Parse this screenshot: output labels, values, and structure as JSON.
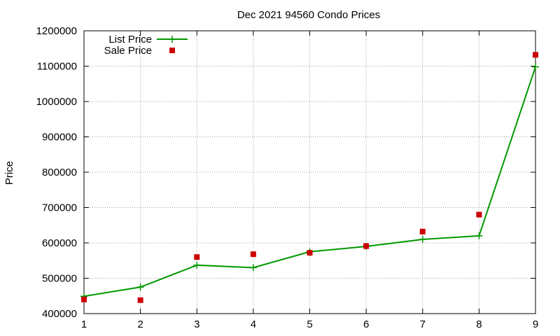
{
  "chart_data": {
    "type": "line",
    "title": "Dec 2021 94560 Condo Prices",
    "xlabel": "",
    "ylabel": "Price",
    "xlim": [
      1,
      9
    ],
    "ylim": [
      400000,
      1200000
    ],
    "x_ticks": [
      1,
      2,
      3,
      4,
      5,
      6,
      7,
      8,
      9
    ],
    "y_ticks": [
      400000,
      500000,
      600000,
      700000,
      800000,
      900000,
      1000000,
      1100000,
      1200000
    ],
    "grid": true,
    "legend_position": "top-left",
    "x": [
      1,
      2,
      3,
      4,
      5,
      6,
      7,
      8,
      9
    ],
    "series": [
      {
        "name": "List Price",
        "style": "line-with-plus-markers",
        "color": "#009900",
        "values": [
          449000,
          475000,
          537000,
          530000,
          575000,
          590000,
          610000,
          620000,
          1098000
        ]
      },
      {
        "name": "Sale Price",
        "style": "square-points",
        "color": "#cc0000",
        "values": [
          440000,
          438000,
          560000,
          568000,
          572000,
          591000,
          632000,
          680000,
          1132000
        ]
      }
    ]
  }
}
